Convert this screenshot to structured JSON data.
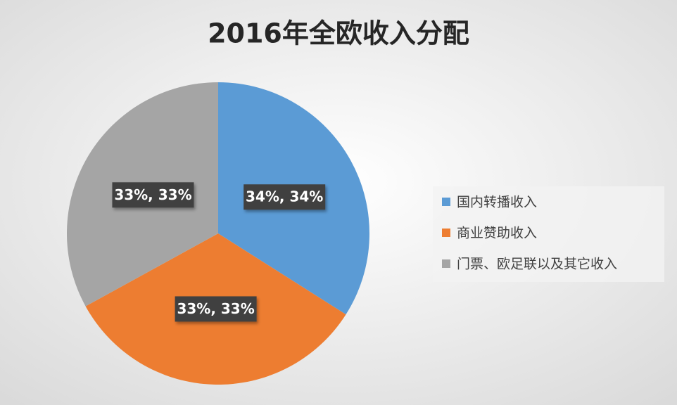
{
  "chart_data": {
    "type": "pie",
    "title": "2016年全欧收入分配",
    "categories": [
      "国内转播收入",
      "商业赞助收入",
      "门票、欧足联以及其它收入"
    ],
    "values": [
      34,
      33,
      33
    ],
    "value_labels": [
      "34%, 34%",
      "33%, 33%",
      "33%, 33%"
    ],
    "colors": [
      "#5b9bd5",
      "#ed7d31",
      "#a5a5a5"
    ],
    "legend": "right"
  }
}
